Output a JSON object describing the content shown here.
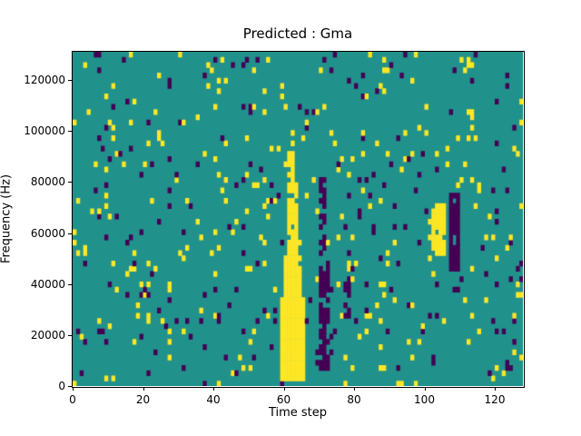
{
  "chart_data": {
    "type": "heatmap",
    "title": "Predicted : Gma",
    "xlabel": "Time step",
    "ylabel": "Frequency (Hz)",
    "xlim": [
      0,
      128
    ],
    "ylim": [
      0,
      131072
    ],
    "x_ticks": [
      0,
      20,
      40,
      60,
      80,
      100,
      120
    ],
    "y_ticks": [
      0,
      20000,
      40000,
      60000,
      80000,
      100000,
      120000
    ],
    "grid": {
      "cols": 128,
      "rows": 64
    },
    "colors": {
      "mid": "#21918c",
      "high": "#fde725",
      "low": "#440154",
      "background": "#ffffff",
      "axis": "#000000"
    },
    "legend": "none",
    "noise": {
      "seed": 7,
      "high_fraction": 0.032,
      "low_fraction": 0.027
    },
    "features": [
      {
        "color": "high",
        "x0": 59,
        "x1": 66,
        "f0": 2000,
        "f1": 34000,
        "density": 1.0
      },
      {
        "color": "high",
        "x0": 60,
        "x1": 65,
        "f0": 34000,
        "f1": 52000,
        "density": 0.95
      },
      {
        "color": "high",
        "x0": 61,
        "x1": 64,
        "f0": 52000,
        "f1": 80000,
        "density": 0.8
      },
      {
        "color": "high",
        "x0": 61,
        "x1": 63,
        "f0": 80000,
        "f1": 92000,
        "density": 0.65
      },
      {
        "color": "low",
        "x0": 70,
        "x1": 73,
        "f0": 6000,
        "f1": 50000,
        "density": 0.75
      },
      {
        "color": "low",
        "x0": 70,
        "x1": 72,
        "f0": 50000,
        "f1": 82000,
        "density": 0.6
      },
      {
        "color": "low",
        "x0": 77,
        "x1": 79,
        "f0": 26000,
        "f1": 42000,
        "density": 0.5
      },
      {
        "color": "high",
        "x0": 102,
        "x1": 106,
        "f0": 52000,
        "f1": 72000,
        "density": 0.9
      },
      {
        "color": "low",
        "x0": 107,
        "x1": 110,
        "f0": 46000,
        "f1": 76000,
        "density": 0.8
      }
    ]
  }
}
